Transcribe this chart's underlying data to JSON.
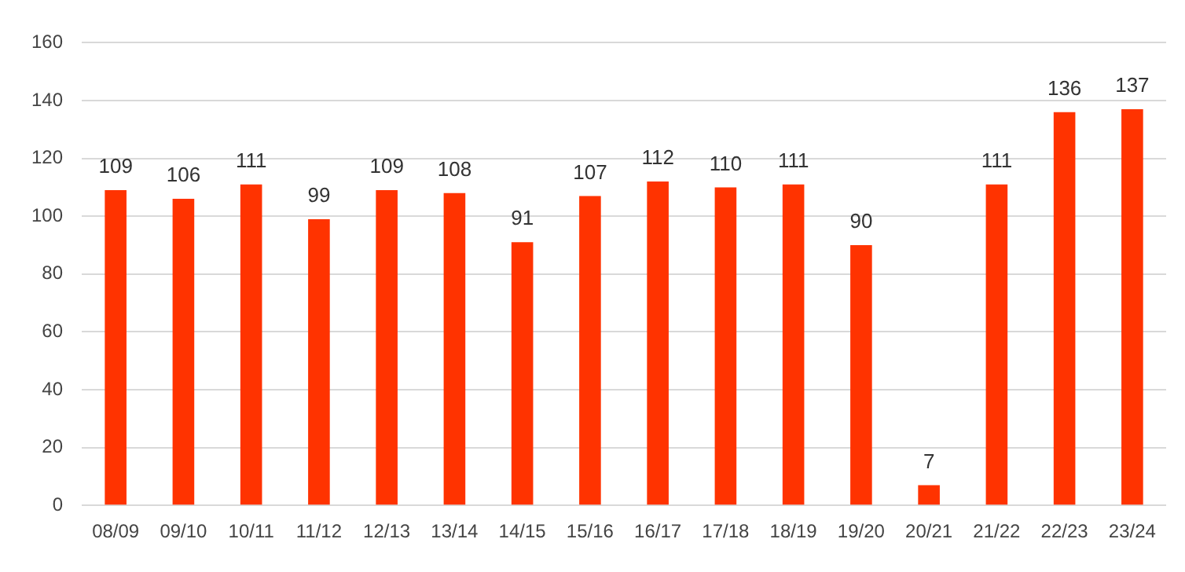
{
  "chart_data": {
    "type": "bar",
    "categories": [
      "08/09",
      "09/10",
      "10/11",
      "11/12",
      "12/13",
      "13/14",
      "14/15",
      "15/16",
      "16/17",
      "17/18",
      "18/19",
      "19/20",
      "20/21",
      "21/22",
      "22/23",
      "23/24"
    ],
    "values": [
      109,
      106,
      111,
      99,
      109,
      108,
      91,
      107,
      112,
      110,
      111,
      90,
      7,
      111,
      136,
      137
    ],
    "color": "#ff3300",
    "ylim": [
      0,
      160
    ],
    "yticks": [
      0,
      20,
      40,
      60,
      80,
      100,
      120,
      140,
      160
    ],
    "grid": "y",
    "data_labels": true
  }
}
